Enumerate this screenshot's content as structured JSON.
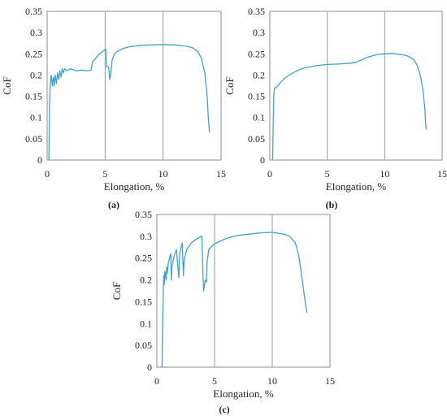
{
  "chart_data": [
    {
      "type": "line",
      "panel_label": "(a)",
      "xlabel": "Elongation, %",
      "ylabel": "CoF",
      "xlim": [
        0,
        15
      ],
      "ylim": [
        0,
        0.35
      ],
      "xticks": [
        0,
        5,
        10,
        15
      ],
      "yticks": [
        0,
        0.05,
        0.1,
        0.15,
        0.2,
        0.25,
        0.3,
        0.35
      ],
      "grid": "vertical",
      "line_color": "#3fa3c9",
      "series": [
        {
          "x": [
            0.15,
            0.2,
            0.25,
            0.3,
            0.35,
            0.45,
            0.5,
            0.55,
            0.6,
            0.7,
            0.8,
            0.9,
            1.0,
            1.1,
            1.2,
            1.3,
            1.4,
            1.5,
            1.7,
            2.0,
            2.5,
            3.0,
            3.5,
            3.8,
            3.9,
            4.5,
            5.0,
            5.05,
            5.1,
            5.3,
            5.4,
            5.5,
            5.6,
            5.8,
            6.0,
            6.5,
            7.0,
            8.0,
            9.0,
            10.0,
            11.0,
            12.0,
            12.5,
            13.0,
            13.3,
            13.6,
            13.8,
            13.9,
            14.0
          ],
          "y": [
            0.0,
            0.12,
            0.17,
            0.19,
            0.2,
            0.175,
            0.19,
            0.195,
            0.175,
            0.2,
            0.18,
            0.205,
            0.19,
            0.21,
            0.195,
            0.215,
            0.205,
            0.215,
            0.21,
            0.215,
            0.21,
            0.212,
            0.21,
            0.212,
            0.23,
            0.25,
            0.26,
            0.262,
            0.22,
            0.22,
            0.19,
            0.205,
            0.235,
            0.25,
            0.255,
            0.262,
            0.266,
            0.27,
            0.271,
            0.272,
            0.271,
            0.268,
            0.265,
            0.255,
            0.24,
            0.205,
            0.15,
            0.1,
            0.065
          ]
        }
      ]
    },
    {
      "type": "line",
      "panel_label": "(b)",
      "xlabel": "Elongation, %",
      "ylabel": "CoF",
      "xlim": [
        0,
        15
      ],
      "ylim": [
        0,
        0.35
      ],
      "xticks": [
        0,
        5,
        10,
        15
      ],
      "yticks": [
        0,
        0.05,
        0.1,
        0.15,
        0.2,
        0.25,
        0.3,
        0.35
      ],
      "grid": "vertical",
      "line_color": "#3fa3c9",
      "series": [
        {
          "x": [
            0.25,
            0.3,
            0.35,
            0.4,
            0.5,
            0.7,
            1.0,
            1.5,
            2.0,
            2.5,
            3.0,
            4.0,
            5.0,
            6.0,
            7.0,
            7.5,
            8.0,
            8.5,
            9.0,
            9.5,
            10.0,
            10.5,
            11.0,
            11.5,
            12.0,
            12.5,
            12.8,
            13.1,
            13.3,
            13.5,
            13.6
          ],
          "y": [
            0.0,
            0.09,
            0.15,
            0.17,
            0.17,
            0.175,
            0.185,
            0.197,
            0.205,
            0.212,
            0.217,
            0.222,
            0.225,
            0.226,
            0.228,
            0.23,
            0.236,
            0.242,
            0.246,
            0.249,
            0.25,
            0.251,
            0.25,
            0.248,
            0.245,
            0.237,
            0.225,
            0.2,
            0.17,
            0.12,
            0.072
          ]
        }
      ]
    },
    {
      "type": "line",
      "panel_label": "(c)",
      "xlabel": "Elongation, %",
      "ylabel": "CoF",
      "xlim": [
        0,
        15
      ],
      "ylim": [
        0,
        0.35
      ],
      "xticks": [
        0,
        5,
        10,
        15
      ],
      "yticks": [
        0,
        0.05,
        0.1,
        0.15,
        0.2,
        0.25,
        0.3,
        0.35
      ],
      "grid": "vertical",
      "line_color": "#3fa3c9",
      "series": [
        {
          "x": [
            0.45,
            0.5,
            0.55,
            0.6,
            0.65,
            0.7,
            0.8,
            0.85,
            0.9,
            1.0,
            1.2,
            1.25,
            1.3,
            1.5,
            1.7,
            1.9,
            1.95,
            2.0,
            2.2,
            2.3,
            2.35,
            2.4,
            2.6,
            3.0,
            3.5,
            3.9,
            4.0,
            4.05,
            4.2,
            4.3,
            4.35,
            4.5,
            5.0,
            6.0,
            7.0,
            8.0,
            9.0,
            10.0,
            11.0,
            11.5,
            12.0,
            12.3,
            12.6,
            12.8,
            13.0
          ],
          "y": [
            0.0,
            0.1,
            0.16,
            0.21,
            0.19,
            0.22,
            0.2,
            0.23,
            0.215,
            0.24,
            0.26,
            0.2,
            0.23,
            0.255,
            0.27,
            0.205,
            0.24,
            0.265,
            0.285,
            0.21,
            0.24,
            0.25,
            0.27,
            0.285,
            0.295,
            0.3,
            0.21,
            0.175,
            0.2,
            0.195,
            0.24,
            0.27,
            0.283,
            0.295,
            0.302,
            0.305,
            0.308,
            0.309,
            0.305,
            0.3,
            0.285,
            0.255,
            0.2,
            0.16,
            0.125
          ]
        }
      ]
    }
  ]
}
